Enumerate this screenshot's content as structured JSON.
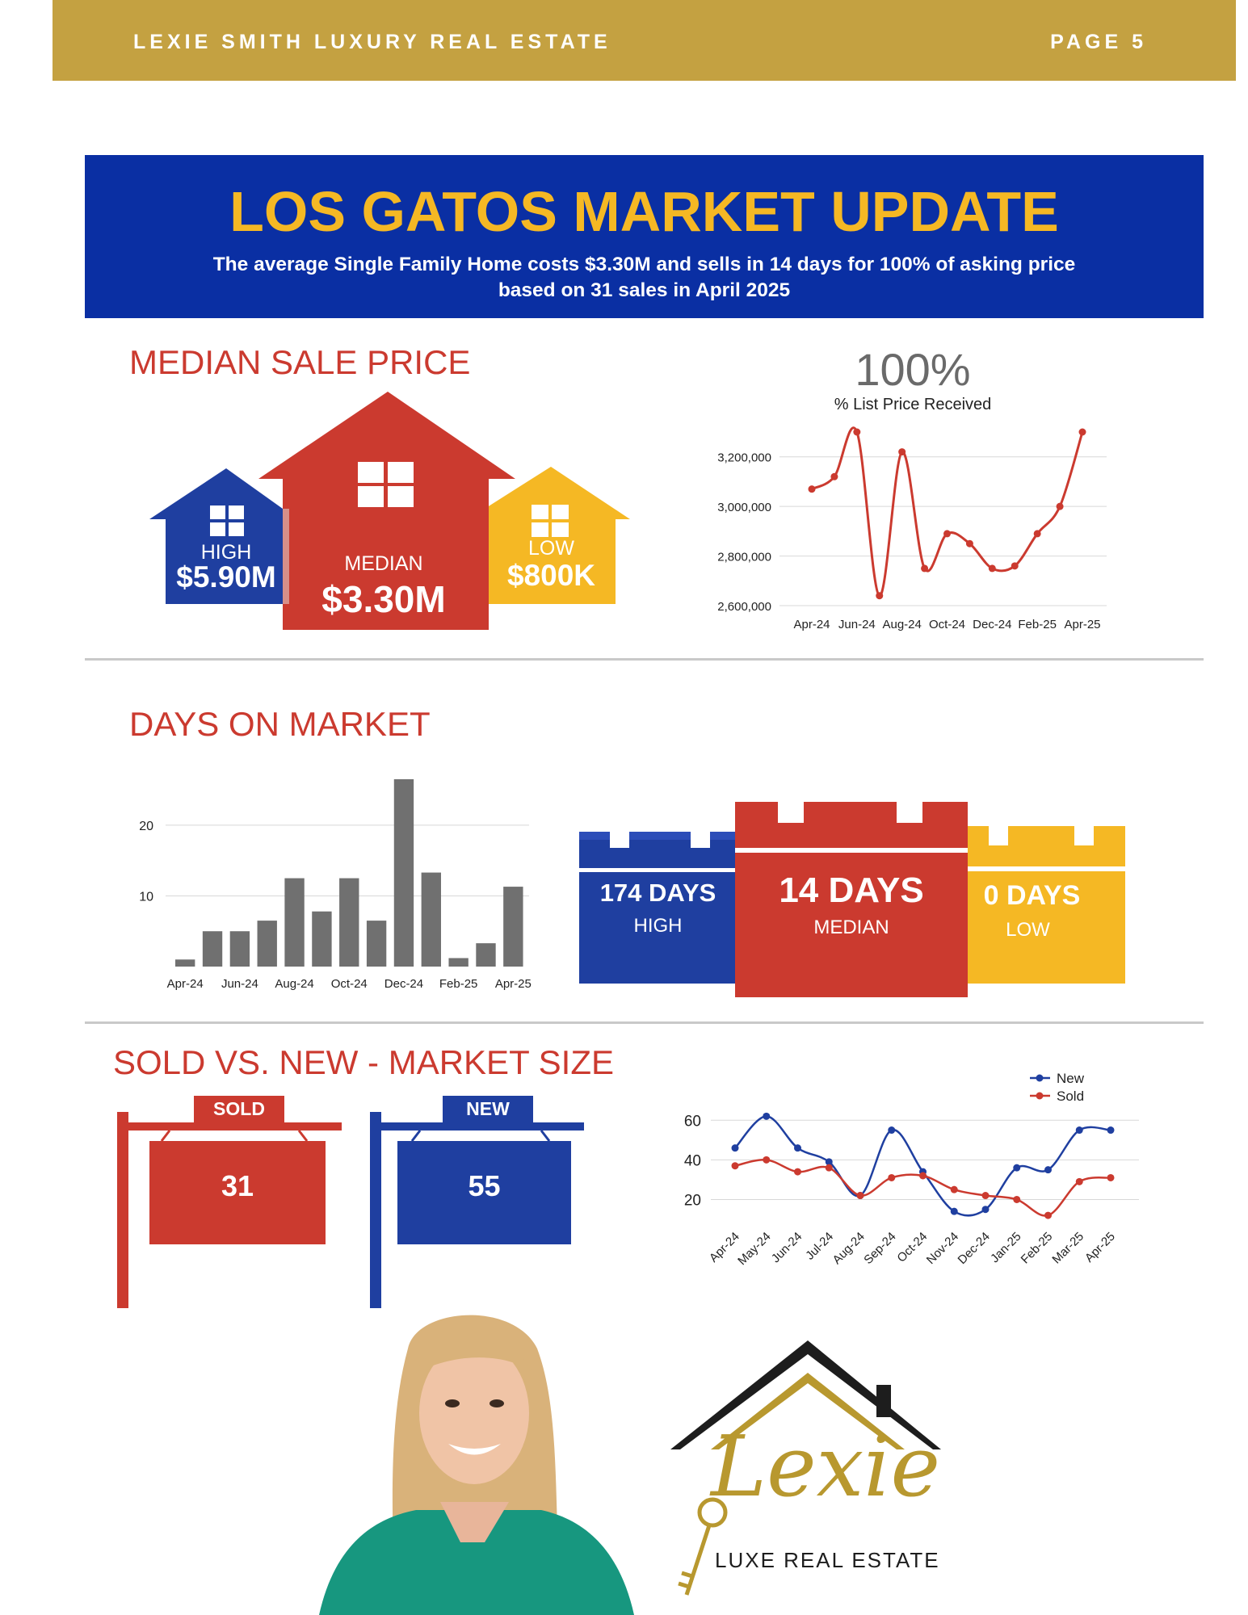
{
  "header": {
    "brand": "LEXIE SMITH LUXURY REAL ESTATE",
    "page": "PAGE 5"
  },
  "banner": {
    "title": "LOS GATOS MARKET UPDATE",
    "subtitle_line1": "The average Single Family Home costs $3.30M and sells in 14 days for 100% of asking price",
    "subtitle_line2": "based on 31 sales in April 2025"
  },
  "median_price": {
    "title": "MEDIAN SALE PRICE",
    "high_label": "HIGH",
    "high_value": "$5.90M",
    "median_label": "MEDIAN",
    "median_value": "$3.30M",
    "low_label": "LOW",
    "low_value": "$800K",
    "pct_value": "100%",
    "pct_label": "% List Price Received"
  },
  "days_on_market": {
    "title": "DAYS ON MARKET",
    "high_value": "174 DAYS",
    "high_label": "HIGH",
    "median_value": "14 DAYS",
    "median_label": "MEDIAN",
    "low_value": "0 DAYS",
    "low_label": "LOW"
  },
  "market_size": {
    "title": "SOLD VS. NEW - MARKET SIZE",
    "sold_label": "SOLD",
    "sold_value": "31",
    "new_label": "NEW",
    "new_value": "55"
  },
  "logo": {
    "script": "Lexie",
    "tagline": "LUXE REAL ESTATE"
  },
  "colors": {
    "gold": "#c4a141",
    "blue": "#0a2fa3",
    "red": "#cb3a2f",
    "yellow": "#f5b824",
    "gray": "#707070"
  },
  "chart_data": [
    {
      "type": "line",
      "title": "",
      "categories": [
        "Apr-24",
        "May-24",
        "Jun-24",
        "Jul-24",
        "Aug-24",
        "Sep-24",
        "Oct-24",
        "Nov-24",
        "Dec-24",
        "Jan-25",
        "Feb-25",
        "Mar-25",
        "Apr-25"
      ],
      "tick_labels": [
        "Apr-24",
        "Jun-24",
        "Aug-24",
        "Oct-24",
        "Dec-24",
        "Feb-25",
        "Apr-25"
      ],
      "series": [
        {
          "values": [
            3070000,
            3120000,
            3300000,
            2640000,
            3220000,
            2750000,
            2890000,
            2850000,
            2750000,
            2760000,
            2890000,
            3000000,
            3300000
          ]
        }
      ],
      "yticks": [
        2600000,
        2800000,
        3000000,
        3200000
      ],
      "ytick_labels": [
        "2,600,000",
        "2,800,000",
        "3,000,000",
        "3,200,000"
      ],
      "ylim": [
        2600000,
        3300000
      ],
      "color": "#cb3a2f",
      "grid": true
    },
    {
      "type": "bar",
      "categories": [
        "Apr-24",
        "May-24",
        "Jun-24",
        "Jul-24",
        "Aug-24",
        "Sep-24",
        "Oct-24",
        "Nov-24",
        "Dec-24",
        "Jan-25",
        "Feb-25",
        "Mar-25",
        "Apr-25"
      ],
      "tick_labels": [
        "Apr-24",
        "Jun-24",
        "Aug-24",
        "Oct-24",
        "Dec-24",
        "Feb-25",
        "Apr-25"
      ],
      "values": [
        1,
        5,
        5,
        6.5,
        12.5,
        7.8,
        12.5,
        6.5,
        26.5,
        13.3,
        1.2,
        3.3,
        11.3
      ],
      "yticks": [
        10,
        20
      ],
      "ytick_labels": [
        "10",
        "20"
      ],
      "ylim": [
        0,
        26.5
      ],
      "color": "#707070",
      "grid": true
    },
    {
      "type": "line",
      "categories": [
        "Apr-24",
        "May-24",
        "Jun-24",
        "Jul-24",
        "Aug-24",
        "Sep-24",
        "Oct-24",
        "Nov-24",
        "Dec-24",
        "Jan-25",
        "Feb-25",
        "Mar-25",
        "Apr-25"
      ],
      "series": [
        {
          "name": "New",
          "color": "#1f3fa0",
          "values": [
            46,
            62,
            46,
            39,
            22,
            55,
            34,
            14,
            15,
            36,
            35,
            55,
            55
          ]
        },
        {
          "name": "Sold",
          "color": "#cb3a2f",
          "values": [
            37,
            40,
            34,
            36,
            22,
            31,
            32,
            25,
            22,
            20,
            12,
            29,
            31
          ]
        }
      ],
      "yticks": [
        20,
        40,
        60
      ],
      "ytick_labels": [
        "20",
        "40",
        "60"
      ],
      "ylim": [
        10,
        65
      ],
      "legend": "top-right",
      "grid": true
    }
  ]
}
